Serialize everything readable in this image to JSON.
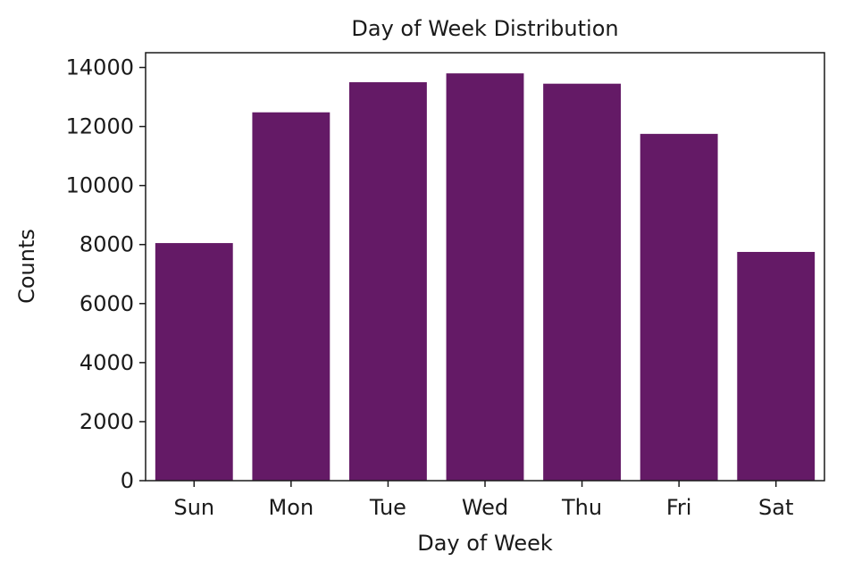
{
  "chart_data": {
    "type": "bar",
    "title": "Day of Week Distribution",
    "xlabel": "Day of Week",
    "ylabel": "Counts",
    "categories": [
      "Sun",
      "Mon",
      "Tue",
      "Wed",
      "Thu",
      "Fri",
      "Sat"
    ],
    "values": [
      8050,
      12480,
      13500,
      13800,
      13450,
      11750,
      7750
    ],
    "ylim": [
      0,
      14500
    ],
    "yticks": [
      0,
      2000,
      4000,
      6000,
      8000,
      10000,
      12000,
      14000
    ],
    "ytick_labels": [
      "0",
      "2000",
      "4000",
      "6000",
      "8000",
      "10000",
      "12000",
      "14000"
    ],
    "grid": false,
    "bar_color": "#641A66"
  }
}
